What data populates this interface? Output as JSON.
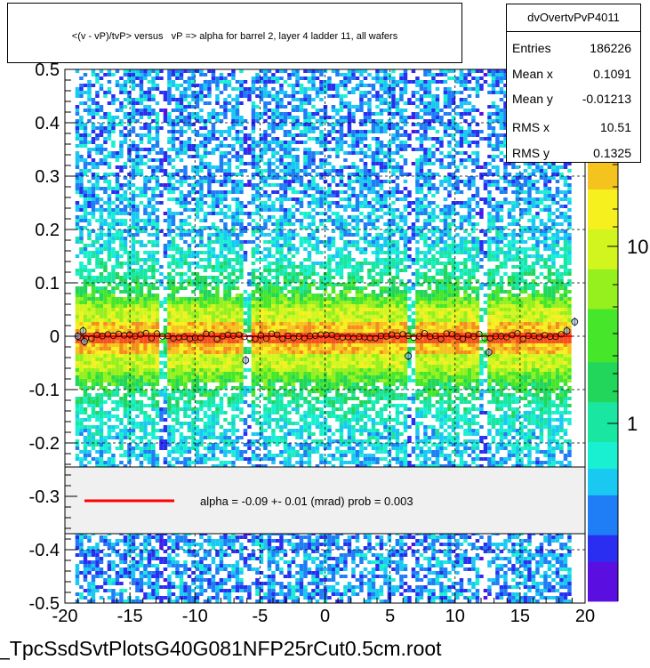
{
  "title": "<(v - vP)/tvP> versus   vP => alpha for barrel 2, layer 4 ladder 11, all wafers",
  "stats": {
    "name": "dvOvertvPvP4011",
    "rows": [
      {
        "label": "Entries",
        "value": "186226"
      },
      {
        "label": "Mean x",
        "value": "0.1091"
      },
      {
        "label": "Mean y",
        "value": "-0.01213"
      },
      {
        "label": "RMS x",
        "value": "10.51"
      },
      {
        "label": "RMS y",
        "value": "0.1325"
      }
    ]
  },
  "legend": {
    "text": "alpha =    -0.09 +-   0.01 (mrad) prob = 0.003",
    "line_color": "#ff0000"
  },
  "footer": "_TpcSsdSvtPlotsG40G081NFP25rCut0.5cm.root",
  "chart_data": {
    "type": "heatmap",
    "title": "<(v - vP)/tvP> versus   vP => alpha for barrel 2, layer 4 ladder 11, all wafers",
    "xlim": [
      -20,
      20
    ],
    "ylim": [
      -0.5,
      0.5
    ],
    "x_ticks": [
      "-20",
      "-15",
      "-10",
      "-5",
      "0",
      "5",
      "10",
      "15",
      "20"
    ],
    "y_ticks": [
      "-0.5",
      "-0.4",
      "-0.3",
      "-0.2",
      "-0.1",
      "0",
      "0.1",
      "0.2",
      "0.3",
      "0.4",
      "0.5"
    ],
    "colorbar_ticks": [
      "1",
      "10"
    ],
    "colorbar_scale": "log",
    "data_extent_x": [
      -19.2,
      18.8
    ],
    "fit_line": {
      "x": [
        -19,
        19
      ],
      "y": [
        0.0,
        0.0
      ],
      "color": "#ff0000"
    },
    "gap_bands_x": [
      [
        -12.9,
        -12.4
      ],
      [
        -6.4,
        -5.9
      ],
      [
        6.2,
        6.7
      ],
      [
        11.8,
        12.3
      ]
    ],
    "profile_points": [
      {
        "x": -19.0,
        "y": 0.0
      },
      {
        "x": -18.6,
        "y": 0.01
      },
      {
        "x": -18.5,
        "y": -0.01
      },
      {
        "x": -6.1,
        "y": -0.045
      },
      {
        "x": 6.4,
        "y": -0.037
      },
      {
        "x": 12.6,
        "y": -0.03
      },
      {
        "x": 18.6,
        "y": 0.01
      },
      {
        "x": 19.2,
        "y": 0.027
      }
    ],
    "grid": true
  }
}
